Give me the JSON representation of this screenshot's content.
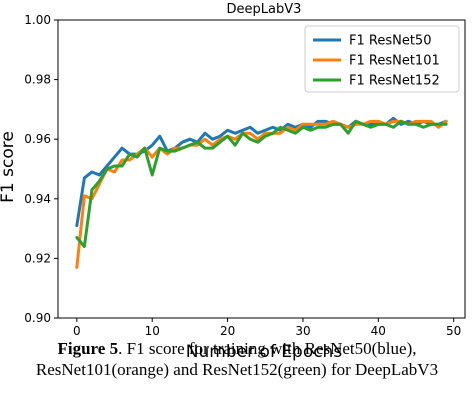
{
  "chart_data": {
    "type": "line",
    "title": "DeepLabV3",
    "xlabel": "Number of Epochs",
    "ylabel": "F1 score",
    "xlim": [
      -2.5,
      51.5
    ],
    "ylim": [
      0.9,
      1.0
    ],
    "xticks": [
      "0",
      "10",
      "20",
      "30",
      "40",
      "50"
    ],
    "yticks": [
      "0.90",
      "0.92",
      "0.94",
      "0.96",
      "0.98",
      "1.00"
    ],
    "grid": false,
    "legend_position": "top-right",
    "x": [
      0,
      1,
      2,
      3,
      4,
      5,
      6,
      7,
      8,
      9,
      10,
      11,
      12,
      13,
      14,
      15,
      16,
      17,
      18,
      19,
      20,
      21,
      22,
      23,
      24,
      25,
      26,
      27,
      28,
      29,
      30,
      31,
      32,
      33,
      34,
      35,
      36,
      37,
      38,
      39,
      40,
      41,
      42,
      43,
      44,
      45,
      46,
      47,
      48,
      49
    ],
    "series": [
      {
        "name": "F1 ResNet50",
        "color": "#1f77b4",
        "values": [
          0.931,
          0.947,
          0.949,
          0.948,
          0.951,
          0.954,
          0.957,
          0.955,
          0.955,
          0.956,
          0.958,
          0.961,
          0.956,
          0.957,
          0.959,
          0.96,
          0.959,
          0.962,
          0.96,
          0.961,
          0.963,
          0.962,
          0.963,
          0.964,
          0.962,
          0.963,
          0.964,
          0.963,
          0.965,
          0.964,
          0.965,
          0.964,
          0.966,
          0.966,
          0.965,
          0.965,
          0.964,
          0.966,
          0.965,
          0.965,
          0.965,
          0.965,
          0.967,
          0.965,
          0.966,
          0.965,
          0.966,
          0.965,
          0.965,
          0.966
        ]
      },
      {
        "name": "F1 ResNet101",
        "color": "#ff7f0e",
        "values": [
          0.917,
          0.941,
          0.94,
          0.945,
          0.95,
          0.949,
          0.953,
          0.953,
          0.955,
          0.957,
          0.954,
          0.957,
          0.955,
          0.957,
          0.957,
          0.958,
          0.958,
          0.96,
          0.958,
          0.96,
          0.961,
          0.96,
          0.962,
          0.962,
          0.96,
          0.962,
          0.962,
          0.962,
          0.964,
          0.963,
          0.965,
          0.965,
          0.965,
          0.965,
          0.966,
          0.965,
          0.964,
          0.965,
          0.965,
          0.966,
          0.966,
          0.965,
          0.966,
          0.966,
          0.965,
          0.966,
          0.966,
          0.966,
          0.964,
          0.966
        ]
      },
      {
        "name": "F1 ResNet152",
        "color": "#2ca02c",
        "values": [
          0.927,
          0.924,
          0.943,
          0.946,
          0.95,
          0.951,
          0.951,
          0.955,
          0.954,
          0.957,
          0.948,
          0.957,
          0.956,
          0.956,
          0.957,
          0.958,
          0.959,
          0.957,
          0.957,
          0.959,
          0.961,
          0.958,
          0.962,
          0.96,
          0.959,
          0.961,
          0.962,
          0.964,
          0.963,
          0.962,
          0.964,
          0.963,
          0.964,
          0.964,
          0.965,
          0.965,
          0.962,
          0.966,
          0.965,
          0.964,
          0.965,
          0.965,
          0.964,
          0.966,
          0.965,
          0.965,
          0.964,
          0.965,
          0.965,
          0.965
        ]
      }
    ]
  },
  "caption": {
    "label": "Figure 5",
    "text": ". F1 score for training with ResNet50(blue), ResNet101(orange) and ResNet152(green) for DeepLabV3"
  }
}
